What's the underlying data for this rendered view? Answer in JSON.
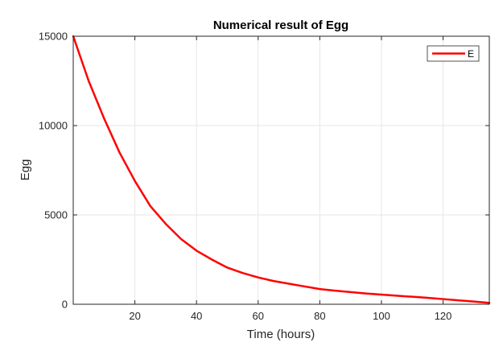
{
  "chart_data": {
    "type": "line",
    "title": "Numerical result of Egg",
    "xlabel": "Time (hours)",
    "ylabel": "Egg",
    "xlim": [
      0,
      135
    ],
    "ylim": [
      0,
      15000
    ],
    "xticks": [
      20,
      40,
      60,
      80,
      100,
      120
    ],
    "yticks": [
      0,
      5000,
      10000,
      15000
    ],
    "grid": true,
    "legend_position": "top-right",
    "series": [
      {
        "name": "E",
        "color": "#ff0000",
        "x": [
          0,
          5,
          10,
          15,
          20,
          25,
          30,
          35,
          40,
          45,
          50,
          55,
          60,
          65,
          70,
          75,
          80,
          85,
          90,
          95,
          100,
          105,
          110,
          115,
          120,
          125,
          130,
          135
        ],
        "y": [
          15000,
          12500,
          10400,
          8500,
          6900,
          5500,
          4500,
          3650,
          3000,
          2500,
          2050,
          1750,
          1500,
          1300,
          1150,
          1000,
          850,
          760,
          680,
          600,
          540,
          480,
          420,
          360,
          290,
          220,
          150,
          80
        ]
      }
    ]
  }
}
